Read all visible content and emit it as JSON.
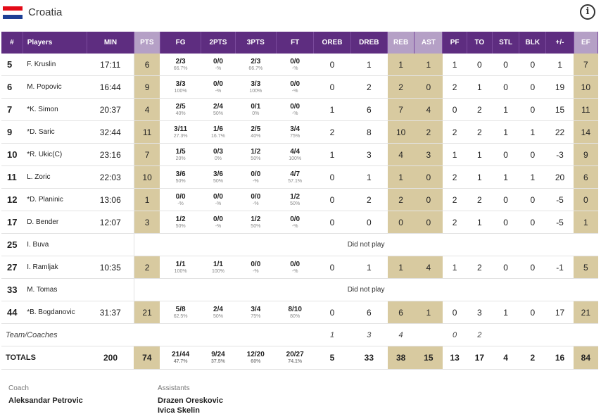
{
  "team": {
    "name": "Croatia",
    "flag_colors": [
      "#e30a17",
      "#ffffff",
      "#1d3f95"
    ]
  },
  "info_glyph": "i",
  "columns": [
    "#",
    "Players",
    "MIN",
    "PTS",
    "FG",
    "2PTS",
    "3PTS",
    "FT",
    "OREB",
    "DREB",
    "REB",
    "AST",
    "PF",
    "TO",
    "STL",
    "BLK",
    "+/-",
    "EF"
  ],
  "players": [
    {
      "num": "5",
      "name": "F. Kruslin",
      "min": "17:11",
      "pts": "6",
      "fg": "2/3",
      "fg_pct": "66.7%",
      "p2": "0/0",
      "p2_pct": "-%",
      "p3": "2/3",
      "p3_pct": "66.7%",
      "ft": "0/0",
      "ft_pct": "-%",
      "oreb": "0",
      "dreb": "1",
      "reb": "1",
      "ast": "1",
      "pf": "1",
      "to": "0",
      "stl": "0",
      "blk": "0",
      "pm": "1",
      "ef": "7"
    },
    {
      "num": "6",
      "name": "M. Popovic",
      "min": "16:44",
      "pts": "9",
      "fg": "3/3",
      "fg_pct": "100%",
      "p2": "0/0",
      "p2_pct": "-%",
      "p3": "3/3",
      "p3_pct": "100%",
      "ft": "0/0",
      "ft_pct": "-%",
      "oreb": "0",
      "dreb": "2",
      "reb": "2",
      "ast": "0",
      "pf": "2",
      "to": "1",
      "stl": "0",
      "blk": "0",
      "pm": "19",
      "ef": "10"
    },
    {
      "num": "7",
      "name": "*K. Simon",
      "min": "20:37",
      "pts": "4",
      "fg": "2/5",
      "fg_pct": "40%",
      "p2": "2/4",
      "p2_pct": "50%",
      "p3": "0/1",
      "p3_pct": "0%",
      "ft": "0/0",
      "ft_pct": "-%",
      "oreb": "1",
      "dreb": "6",
      "reb": "7",
      "ast": "4",
      "pf": "0",
      "to": "2",
      "stl": "1",
      "blk": "0",
      "pm": "15",
      "ef": "11"
    },
    {
      "num": "9",
      "name": "*D. Saric",
      "min": "32:44",
      "pts": "11",
      "fg": "3/11",
      "fg_pct": "27.3%",
      "p2": "1/6",
      "p2_pct": "16.7%",
      "p3": "2/5",
      "p3_pct": "40%",
      "ft": "3/4",
      "ft_pct": "75%",
      "oreb": "2",
      "dreb": "8",
      "reb": "10",
      "ast": "2",
      "pf": "2",
      "to": "2",
      "stl": "1",
      "blk": "1",
      "pm": "22",
      "ef": "14"
    },
    {
      "num": "10",
      "name": "*R. Ukic(C)",
      "min": "23:16",
      "pts": "7",
      "fg": "1/5",
      "fg_pct": "20%",
      "p2": "0/3",
      "p2_pct": "0%",
      "p3": "1/2",
      "p3_pct": "50%",
      "ft": "4/4",
      "ft_pct": "100%",
      "oreb": "1",
      "dreb": "3",
      "reb": "4",
      "ast": "3",
      "pf": "1",
      "to": "1",
      "stl": "0",
      "blk": "0",
      "pm": "-3",
      "ef": "9"
    },
    {
      "num": "11",
      "name": "L. Zoric",
      "min": "22:03",
      "pts": "10",
      "fg": "3/6",
      "fg_pct": "50%",
      "p2": "3/6",
      "p2_pct": "50%",
      "p3": "0/0",
      "p3_pct": "-%",
      "ft": "4/7",
      "ft_pct": "57.1%",
      "oreb": "0",
      "dreb": "1",
      "reb": "1",
      "ast": "0",
      "pf": "2",
      "to": "1",
      "stl": "1",
      "blk": "1",
      "pm": "20",
      "ef": "6"
    },
    {
      "num": "12",
      "name": "*D. Planinic",
      "min": "13:06",
      "pts": "1",
      "fg": "0/0",
      "fg_pct": "-%",
      "p2": "0/0",
      "p2_pct": "-%",
      "p3": "0/0",
      "p3_pct": "-%",
      "ft": "1/2",
      "ft_pct": "50%",
      "oreb": "0",
      "dreb": "2",
      "reb": "2",
      "ast": "0",
      "pf": "2",
      "to": "2",
      "stl": "0",
      "blk": "0",
      "pm": "-5",
      "ef": "0"
    },
    {
      "num": "17",
      "name": "D. Bender",
      "min": "12:07",
      "pts": "3",
      "fg": "1/2",
      "fg_pct": "50%",
      "p2": "0/0",
      "p2_pct": "-%",
      "p3": "1/2",
      "p3_pct": "50%",
      "ft": "0/0",
      "ft_pct": "-%",
      "oreb": "0",
      "dreb": "0",
      "reb": "0",
      "ast": "0",
      "pf": "2",
      "to": "1",
      "stl": "0",
      "blk": "0",
      "pm": "-5",
      "ef": "1"
    },
    {
      "num": "25",
      "name": "I. Buva",
      "dnp": "Did not play"
    },
    {
      "num": "27",
      "name": "I. Ramljak",
      "min": "10:35",
      "pts": "2",
      "fg": "1/1",
      "fg_pct": "100%",
      "p2": "1/1",
      "p2_pct": "100%",
      "p3": "0/0",
      "p3_pct": "-%",
      "ft": "0/0",
      "ft_pct": "-%",
      "oreb": "0",
      "dreb": "1",
      "reb": "1",
      "ast": "4",
      "pf": "1",
      "to": "2",
      "stl": "0",
      "blk": "0",
      "pm": "-1",
      "ef": "5"
    },
    {
      "num": "33",
      "name": "M. Tomas",
      "dnp": "Did not play"
    },
    {
      "num": "44",
      "name": "*B. Bogdanovic",
      "min": "31:37",
      "pts": "21",
      "fg": "5/8",
      "fg_pct": "62.5%",
      "p2": "2/4",
      "p2_pct": "50%",
      "p3": "3/4",
      "p3_pct": "75%",
      "ft": "8/10",
      "ft_pct": "80%",
      "oreb": "0",
      "dreb": "6",
      "reb": "6",
      "ast": "1",
      "pf": "0",
      "to": "3",
      "stl": "1",
      "blk": "0",
      "pm": "17",
      "ef": "21"
    }
  ],
  "team_coaches": {
    "label": "Team/Coaches",
    "oreb": "1",
    "dreb": "3",
    "reb": "4",
    "pf": "0",
    "to": "2"
  },
  "totals": {
    "label": "TOTALS",
    "min": "200",
    "pts": "74",
    "fg": "21/44",
    "fg_pct": "47.7%",
    "p2": "9/24",
    "p2_pct": "37.5%",
    "p3": "12/20",
    "p3_pct": "60%",
    "ft": "20/27",
    "ft_pct": "74.1%",
    "oreb": "5",
    "dreb": "33",
    "reb": "38",
    "ast": "15",
    "pf": "13",
    "to": "17",
    "stl": "4",
    "blk": "2",
    "pm": "16",
    "ef": "84"
  },
  "coach": {
    "label": "Coach",
    "name": "Aleksandar Petrovic"
  },
  "assistants": {
    "label": "Assistants",
    "names": [
      "Drazen Oreskovic",
      "Ivica Skelin"
    ]
  }
}
